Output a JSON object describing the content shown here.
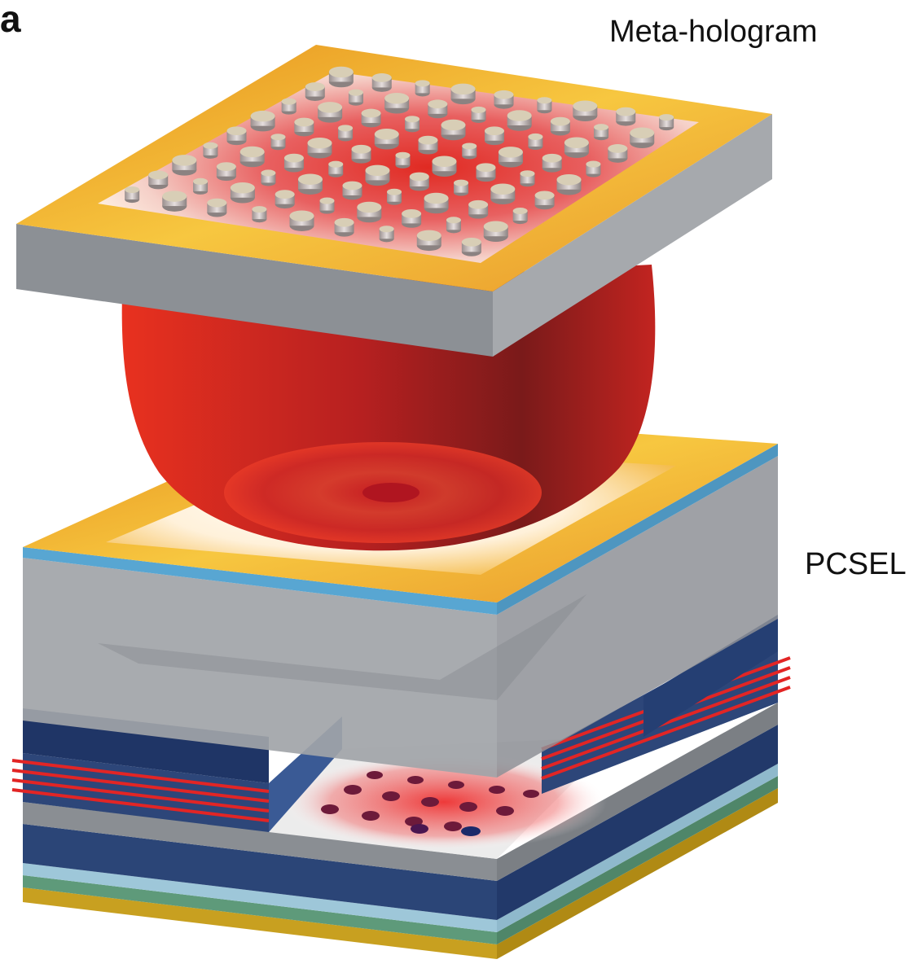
{
  "figure": {
    "panel_letter": "a",
    "labels": {
      "top_component": "Meta-hologram",
      "bottom_component": "PCSEL"
    }
  },
  "colors": {
    "gold": "#f0b030",
    "beam_red": "#e8291f",
    "substrate_gray": "#9ea2a6",
    "layer_navy": "#243d6e",
    "layer_blue": "#5aa9d6",
    "layer_green": "#5e9a7a",
    "base_gold": "#c29a1c"
  }
}
